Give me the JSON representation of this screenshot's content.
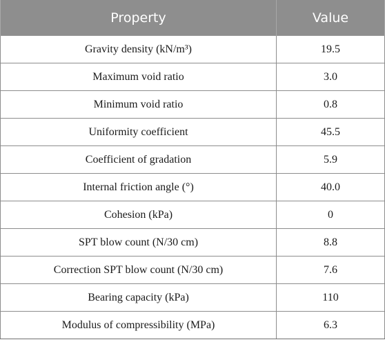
{
  "table": {
    "headers": [
      "Property",
      "Value"
    ],
    "rows": [
      {
        "property": "Gravity density (kN/m³)",
        "value": "19.5"
      },
      {
        "property": "Maximum void ratio",
        "value": "3.0"
      },
      {
        "property": "Minimum void ratio",
        "value": "0.8"
      },
      {
        "property": "Uniformity coefficient",
        "value": "45.5"
      },
      {
        "property": "Coefficient of gradation",
        "value": "5.9"
      },
      {
        "property": "Internal friction angle (°)",
        "value": "40.0"
      },
      {
        "property": "Cohesion (kPa)",
        "value": "0"
      },
      {
        "property": "SPT blow count (N/30 cm)",
        "value": "8.8"
      },
      {
        "property": "Correction SPT blow count (N/30 cm)",
        "value": "7.6"
      },
      {
        "property": "Bearing capacity (kPa)",
        "value": "110"
      },
      {
        "property": "Modulus of compressibility (MPa)",
        "value": "6.3"
      }
    ]
  },
  "colors": {
    "header_background": "#8e8e8e",
    "header_text": "#ffffff",
    "border": "#8c8c8c"
  }
}
